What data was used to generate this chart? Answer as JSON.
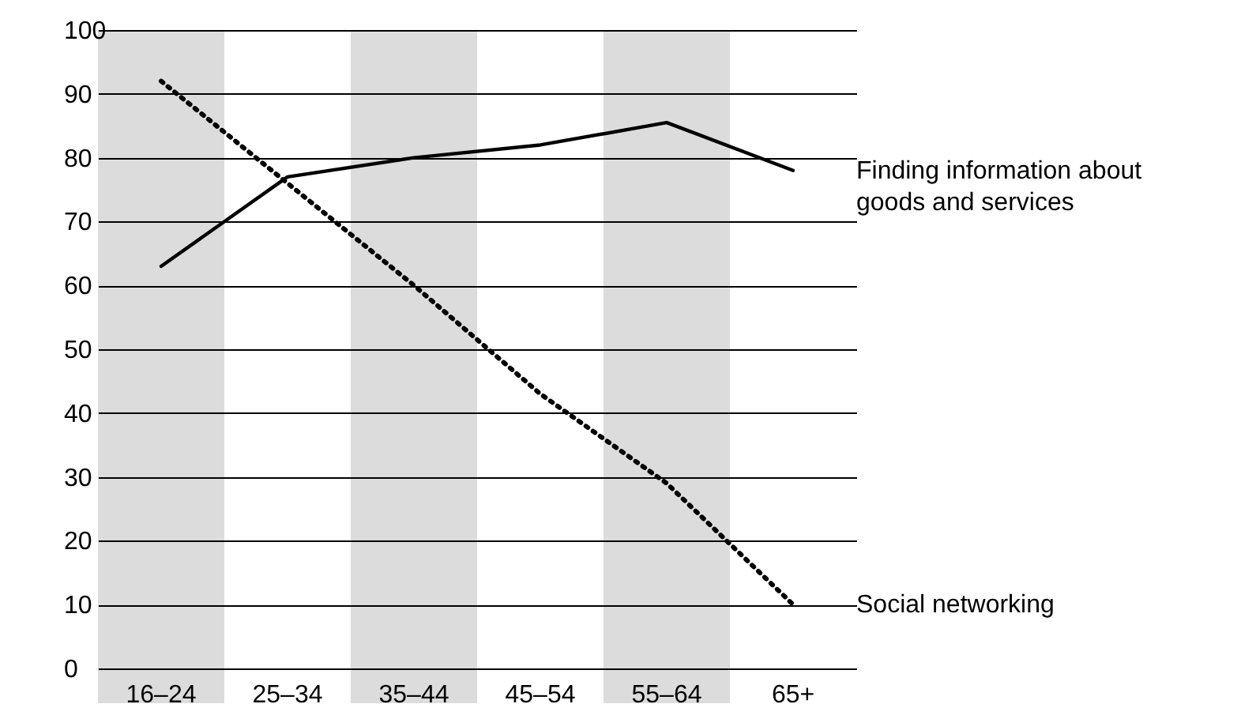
{
  "chart_data": {
    "type": "line",
    "categories": [
      "16–24",
      "25–34",
      "35–44",
      "45–54",
      "55–64",
      "65+"
    ],
    "series": [
      {
        "name": "Finding information about goods and services",
        "color": "#000000",
        "line_style": "solid",
        "values": [
          63,
          77,
          80,
          82,
          85.5,
          78
        ]
      },
      {
        "name": "Social networking",
        "color": "#000000",
        "line_style": "dotted",
        "values": [
          92,
          76,
          60,
          43,
          29,
          10
        ]
      }
    ],
    "ylim": [
      0,
      100
    ],
    "yticks": [
      0,
      10,
      20,
      30,
      40,
      50,
      60,
      70,
      80,
      90,
      100
    ],
    "grid": "y",
    "legend": false,
    "marker": "none",
    "bands": [
      {
        "axis": "x",
        "from": "16–24",
        "to": "16–24",
        "color": "#dcdcdc"
      },
      {
        "axis": "x",
        "from": "35–44",
        "to": "35–44",
        "color": "#dcdcdc"
      },
      {
        "axis": "x",
        "from": "55–64",
        "to": "55–64",
        "color": "#dcdcdc"
      }
    ]
  }
}
